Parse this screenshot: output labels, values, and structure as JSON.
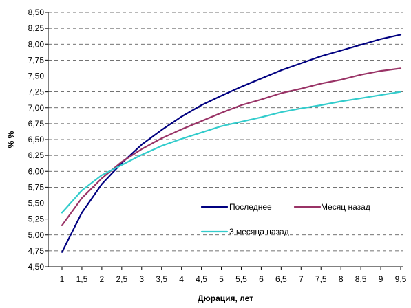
{
  "chart_data": {
    "type": "line",
    "xlabel": "Дюрация, лет",
    "ylabel": "% %",
    "xlim": [
      1,
      9.5
    ],
    "ylim": [
      4.5,
      8.5
    ],
    "grid": "horizontal",
    "x": [
      1,
      1.5,
      2,
      2.5,
      3,
      3.5,
      4,
      4.5,
      5,
      5.5,
      6,
      6.5,
      7,
      7.5,
      8,
      8.5,
      9,
      9.5
    ],
    "x_tick_labels": [
      "1",
      "1,5",
      "2",
      "2,5",
      "3",
      "3,5",
      "4",
      "4,5",
      "5",
      "5,5",
      "6",
      "6,5",
      "7",
      "7,5",
      "8",
      "8,5",
      "9",
      "9,5"
    ],
    "y_ticks": [
      4.5,
      4.75,
      5.0,
      5.25,
      5.5,
      5.75,
      6.0,
      6.25,
      6.5,
      6.75,
      7.0,
      7.25,
      7.5,
      7.75,
      8.0,
      8.25,
      8.5
    ],
    "y_tick_labels": [
      "4,50",
      "4,75",
      "5,00",
      "5,25",
      "5,50",
      "5,75",
      "6,00",
      "6,25",
      "6,50",
      "6,75",
      "7,00",
      "7,25",
      "7,50",
      "7,75",
      "8,00",
      "8,25",
      "8,50"
    ],
    "series": [
      {
        "name": "Последнее",
        "color": "#000080",
        "values": [
          4.73,
          5.35,
          5.8,
          6.13,
          6.42,
          6.65,
          6.86,
          7.04,
          7.19,
          7.33,
          7.46,
          7.59,
          7.7,
          7.81,
          7.9,
          7.99,
          8.08,
          8.15
        ]
      },
      {
        "name": "Месяц назад",
        "color": "#993366",
        "values": [
          5.15,
          5.58,
          5.89,
          6.15,
          6.35,
          6.52,
          6.66,
          6.79,
          6.92,
          7.04,
          7.13,
          7.23,
          7.3,
          7.38,
          7.44,
          7.52,
          7.58,
          7.62
        ]
      },
      {
        "name": "3 месяца назад",
        "color": "#33CCCC",
        "values": [
          5.35,
          5.7,
          5.94,
          6.1,
          6.26,
          6.4,
          6.51,
          6.61,
          6.71,
          6.78,
          6.85,
          6.93,
          6.99,
          7.04,
          7.1,
          7.15,
          7.2,
          7.25
        ]
      }
    ],
    "legend_position": "bottom-right"
  }
}
